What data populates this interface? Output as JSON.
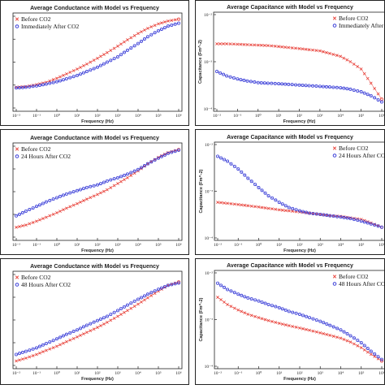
{
  "chart_data": [
    {
      "type": "scatter",
      "title": "Average Conductance with Model vs Frequency",
      "xlabel": "Frequency (Hz)",
      "ylabel": "",
      "xscale": "log",
      "yscale": "log",
      "xlim": [
        0.01,
        1000000
      ],
      "ylim": [
        0.0001,
        0.01
      ],
      "x_ticks": [
        "10⁻²",
        "10⁻¹",
        "10⁰",
        "10¹",
        "10²",
        "10³",
        "10⁴",
        "10⁵",
        "10⁶"
      ],
      "y_ticks": [],
      "legend_position": "top-left",
      "series": [
        {
          "name": "Before CO2",
          "color": "#e8423a",
          "marker": "x",
          "points": [
            [
              0.01,
              0.00029
            ],
            [
              0.03,
              0.0003
            ],
            [
              0.1,
              0.00033
            ],
            [
              0.3,
              0.00037
            ],
            [
              1,
              0.00045
            ],
            [
              3,
              0.00056
            ],
            [
              10,
              0.00071
            ],
            [
              30,
              0.00091
            ],
            [
              100,
              0.00121
            ],
            [
              300,
              0.0016
            ],
            [
              1000,
              0.0022
            ],
            [
              3000,
              0.003
            ],
            [
              10000,
              0.0041
            ],
            [
              30000,
              0.0053
            ],
            [
              100000,
              0.0066
            ],
            [
              300000,
              0.0076
            ],
            [
              1000000,
              0.0083
            ]
          ]
        },
        {
          "name": "Immediately After CO2",
          "color": "#3b3fd8",
          "marker": "circle",
          "points": [
            [
              0.01,
              0.00028
            ],
            [
              0.03,
              0.00029
            ],
            [
              0.1,
              0.00031
            ],
            [
              0.3,
              0.00034
            ],
            [
              1,
              0.00038
            ],
            [
              3,
              0.00044
            ],
            [
              10,
              0.00052
            ],
            [
              30,
              0.00063
            ],
            [
              100,
              0.00078
            ],
            [
              300,
              0.001
            ],
            [
              1000,
              0.0013
            ],
            [
              3000,
              0.0018
            ],
            [
              10000,
              0.0025
            ],
            [
              30000,
              0.0035
            ],
            [
              100000,
              0.0047
            ],
            [
              300000,
              0.0059
            ],
            [
              1000000,
              0.0068
            ]
          ]
        }
      ]
    },
    {
      "type": "scatter",
      "title": "Average Capacitance with Model vs Frequency",
      "xlabel": "Frequency (Hz)",
      "ylabel": "Capacitance (Fm^-2)",
      "xscale": "log",
      "yscale": "log",
      "xlim": [
        0.01,
        1000000
      ],
      "ylim": [
        0.0001,
        0.01
      ],
      "x_ticks": [
        "10⁻²",
        "10⁻¹",
        "10⁰",
        "10¹",
        "10²",
        "10³",
        "10⁴",
        "10⁵",
        "10⁶"
      ],
      "y_ticks": [
        "10⁻⁴",
        "10⁻³",
        "10⁻²"
      ],
      "legend_position": "top-right",
      "series": [
        {
          "name": "Before CO2",
          "color": "#e8423a",
          "marker": "x",
          "points": [
            [
              0.01,
              0.0024
            ],
            [
              0.03,
              0.0024
            ],
            [
              0.1,
              0.00235
            ],
            [
              0.3,
              0.0023
            ],
            [
              1,
              0.00225
            ],
            [
              3,
              0.0022
            ],
            [
              10,
              0.0021
            ],
            [
              30,
              0.002
            ],
            [
              100,
              0.0019
            ],
            [
              300,
              0.0018
            ],
            [
              1000,
              0.0017
            ],
            [
              3000,
              0.0015
            ],
            [
              10000,
              0.0013
            ],
            [
              30000,
              0.001
            ],
            [
              100000,
              0.0007
            ],
            [
              300000,
              0.00035
            ],
            [
              1000000,
              0.00016
            ]
          ]
        },
        {
          "name": "Immediately After CO2",
          "color": "#3b3fd8",
          "marker": "circle",
          "points": [
            [
              0.01,
              0.00062
            ],
            [
              0.03,
              0.0005
            ],
            [
              0.1,
              0.00043
            ],
            [
              0.3,
              0.00039
            ],
            [
              1,
              0.00036
            ],
            [
              3,
              0.00035
            ],
            [
              10,
              0.00034
            ],
            [
              30,
              0.00033
            ],
            [
              100,
              0.00032
            ],
            [
              300,
              0.00031
            ],
            [
              1000,
              0.0003
            ],
            [
              3000,
              0.00029
            ],
            [
              10000,
              0.00028
            ],
            [
              30000,
              0.00026
            ],
            [
              100000,
              0.00023
            ],
            [
              300000,
              0.00019
            ],
            [
              1000000,
              0.00014
            ]
          ]
        }
      ]
    },
    {
      "type": "scatter",
      "title": "Average Conductance with Model vs Frequency",
      "xlabel": "Frequency (Hz)",
      "ylabel": "",
      "xscale": "log",
      "yscale": "log",
      "xlim": [
        0.01,
        1000000
      ],
      "ylim": [
        0.0001,
        0.01
      ],
      "x_ticks": [
        "10⁻²",
        "10⁻¹",
        "10⁰",
        "10¹",
        "10²",
        "10³",
        "10⁴",
        "10⁵",
        "10⁶"
      ],
      "y_ticks": [],
      "legend_position": "top-left",
      "series": [
        {
          "name": "Before CO2",
          "color": "#e8423a",
          "marker": "x",
          "points": [
            [
              0.01,
              0.00017
            ],
            [
              0.03,
              0.00019
            ],
            [
              0.1,
              0.00023
            ],
            [
              0.3,
              0.00028
            ],
            [
              1,
              0.00035
            ],
            [
              3,
              0.00044
            ],
            [
              10,
              0.00055
            ],
            [
              30,
              0.00069
            ],
            [
              100,
              0.00087
            ],
            [
              300,
              0.0011
            ],
            [
              1000,
              0.0015
            ],
            [
              3000,
              0.002
            ],
            [
              10000,
              0.0028
            ],
            [
              30000,
              0.004
            ],
            [
              100000,
              0.0055
            ],
            [
              300000,
              0.007
            ],
            [
              1000000,
              0.0081
            ]
          ]
        },
        {
          "name": "24 Hours After CO2",
          "color": "#3b3fd8",
          "marker": "circle",
          "points": [
            [
              0.01,
              0.0003
            ],
            [
              0.03,
              0.00038
            ],
            [
              0.1,
              0.00048
            ],
            [
              0.3,
              0.0006
            ],
            [
              1,
              0.00074
            ],
            [
              3,
              0.00089
            ],
            [
              10,
              0.00105
            ],
            [
              30,
              0.00123
            ],
            [
              100,
              0.0014
            ],
            [
              300,
              0.0017
            ],
            [
              1000,
              0.002
            ],
            [
              3000,
              0.0024
            ],
            [
              10000,
              0.003
            ],
            [
              30000,
              0.004
            ],
            [
              100000,
              0.0053
            ],
            [
              300000,
              0.0067
            ],
            [
              1000000,
              0.0079
            ]
          ]
        }
      ]
    },
    {
      "type": "scatter",
      "title": "Average Capacitance with Model vs Frequency",
      "xlabel": "Frequency (Hz)",
      "ylabel": "Capacitance (Fm^-2)",
      "xscale": "log",
      "yscale": "log",
      "xlim": [
        0.01,
        1000000
      ],
      "ylim": [
        0.0001,
        0.01
      ],
      "x_ticks": [
        "10⁻²",
        "10⁻¹",
        "10⁰",
        "10¹",
        "10²",
        "10³",
        "10⁴",
        "10⁵",
        "10⁶"
      ],
      "y_ticks": [
        "10⁻⁴",
        "10⁻³",
        "10⁻²"
      ],
      "legend_position": "top-right",
      "series": [
        {
          "name": "Before CO2",
          "color": "#e8423a",
          "marker": "x",
          "points": [
            [
              0.01,
              0.00058
            ],
            [
              0.03,
              0.00055
            ],
            [
              0.1,
              0.00052
            ],
            [
              0.3,
              0.00049
            ],
            [
              1,
              0.00046
            ],
            [
              3,
              0.00043
            ],
            [
              10,
              0.0004
            ],
            [
              30,
              0.00038
            ],
            [
              100,
              0.00036
            ],
            [
              300,
              0.00034
            ],
            [
              1000,
              0.00032
            ],
            [
              3000,
              0.0003
            ],
            [
              10000,
              0.00029
            ],
            [
              30000,
              0.00027
            ],
            [
              100000,
              0.00025
            ],
            [
              300000,
              0.00021
            ],
            [
              1000000,
              0.00017
            ]
          ]
        },
        {
          "name": "24 Hours After CO2",
          "color": "#3b3fd8",
          "marker": "circle",
          "points": [
            [
              0.01,
              0.0056
            ],
            [
              0.03,
              0.0044
            ],
            [
              0.1,
              0.003
            ],
            [
              0.3,
              0.0019
            ],
            [
              1,
              0.0012
            ],
            [
              3,
              0.0008
            ],
            [
              10,
              0.00058
            ],
            [
              30,
              0.00045
            ],
            [
              100,
              0.00038
            ],
            [
              300,
              0.00034
            ],
            [
              1000,
              0.00032
            ],
            [
              3000,
              0.0003
            ],
            [
              10000,
              0.00028
            ],
            [
              30000,
              0.00026
            ],
            [
              100000,
              0.00023
            ],
            [
              300000,
              0.0002
            ],
            [
              1000000,
              0.00017
            ]
          ]
        }
      ]
    },
    {
      "type": "scatter",
      "title": "Average Conductance with Model vs Frequency",
      "xlabel": "Frequency (Hz)",
      "ylabel": "",
      "xscale": "log",
      "yscale": "log",
      "xlim": [
        0.01,
        1000000
      ],
      "ylim": [
        0.0001,
        0.01
      ],
      "x_ticks": [
        "10⁻²",
        "10⁻¹",
        "10⁰",
        "10¹",
        "10²",
        "10³",
        "10⁴",
        "10⁵",
        "10⁶"
      ],
      "y_ticks": [],
      "legend_position": "top-left",
      "series": [
        {
          "name": "Before CO2",
          "color": "#e8423a",
          "marker": "x",
          "points": [
            [
              0.01,
              0.00013
            ],
            [
              0.03,
              0.00015
            ],
            [
              0.1,
              0.00018
            ],
            [
              0.3,
              0.00022
            ],
            [
              1,
              0.00027
            ],
            [
              3,
              0.00034
            ],
            [
              10,
              0.00043
            ],
            [
              30,
              0.00054
            ],
            [
              100,
              0.00069
            ],
            [
              300,
              0.00089
            ],
            [
              1000,
              0.0012
            ],
            [
              3000,
              0.0016
            ],
            [
              10000,
              0.0022
            ],
            [
              30000,
              0.003
            ],
            [
              100000,
              0.0042
            ],
            [
              300000,
              0.0056
            ],
            [
              1000000,
              0.0066
            ]
          ]
        },
        {
          "name": "48 Hours After CO2",
          "color": "#3b3fd8",
          "marker": "circle",
          "points": [
            [
              0.01,
              0.00018
            ],
            [
              0.03,
              0.00021
            ],
            [
              0.1,
              0.00025
            ],
            [
              0.3,
              0.00031
            ],
            [
              1,
              0.00039
            ],
            [
              3,
              0.00049
            ],
            [
              10,
              0.00061
            ],
            [
              30,
              0.00077
            ],
            [
              100,
              0.00097
            ],
            [
              300,
              0.0012
            ],
            [
              1000,
              0.0016
            ],
            [
              3000,
              0.0021
            ],
            [
              10000,
              0.0028
            ],
            [
              30000,
              0.0036
            ],
            [
              100000,
              0.0046
            ],
            [
              300000,
              0.0056
            ],
            [
              1000000,
              0.0063
            ]
          ]
        }
      ]
    },
    {
      "type": "scatter",
      "title": "Average Capacitance with Model vs Frequency",
      "xlabel": "Frequency (Hz)",
      "ylabel": "Capacitance (Fm^-2)",
      "xscale": "log",
      "yscale": "log",
      "xlim": [
        0.01,
        1000000
      ],
      "ylim": [
        0.0001,
        0.01
      ],
      "x_ticks": [
        "10⁻²",
        "10⁻¹",
        "10⁰",
        "10¹",
        "10²",
        "10³",
        "10⁴",
        "10⁵",
        "10⁶"
      ],
      "y_ticks": [
        "10⁻⁴",
        "10⁻³",
        "10⁻²"
      ],
      "legend_position": "top-right",
      "series": [
        {
          "name": "Before CO2",
          "color": "#e8423a",
          "marker": "x",
          "points": [
            [
              0.01,
              0.003
            ],
            [
              0.03,
              0.0021
            ],
            [
              0.1,
              0.0016
            ],
            [
              0.3,
              0.0013
            ],
            [
              1,
              0.0011
            ],
            [
              3,
              0.00095
            ],
            [
              10,
              0.00083
            ],
            [
              30,
              0.00074
            ],
            [
              100,
              0.00066
            ],
            [
              300,
              0.00059
            ],
            [
              1000,
              0.00052
            ],
            [
              3000,
              0.00046
            ],
            [
              10000,
              0.0004
            ],
            [
              30000,
              0.00033
            ],
            [
              100000,
              0.00025
            ],
            [
              300000,
              0.00018
            ],
            [
              1000000,
              0.00013
            ]
          ]
        },
        {
          "name": "48 Hours After CO2",
          "color": "#3b3fd8",
          "marker": "circle",
          "points": [
            [
              0.01,
              0.006
            ],
            [
              0.03,
              0.0044
            ],
            [
              0.1,
              0.0035
            ],
            [
              0.3,
              0.0029
            ],
            [
              1,
              0.0025
            ],
            [
              3,
              0.0021
            ],
            [
              10,
              0.0018
            ],
            [
              30,
              0.0015
            ],
            [
              100,
              0.0013
            ],
            [
              300,
              0.0011
            ],
            [
              1000,
              0.00092
            ],
            [
              3000,
              0.00075
            ],
            [
              10000,
              0.0006
            ],
            [
              30000,
              0.00045
            ],
            [
              100000,
              0.00032
            ],
            [
              300000,
              0.00021
            ],
            [
              1000000,
              0.00014
            ]
          ]
        }
      ]
    }
  ]
}
